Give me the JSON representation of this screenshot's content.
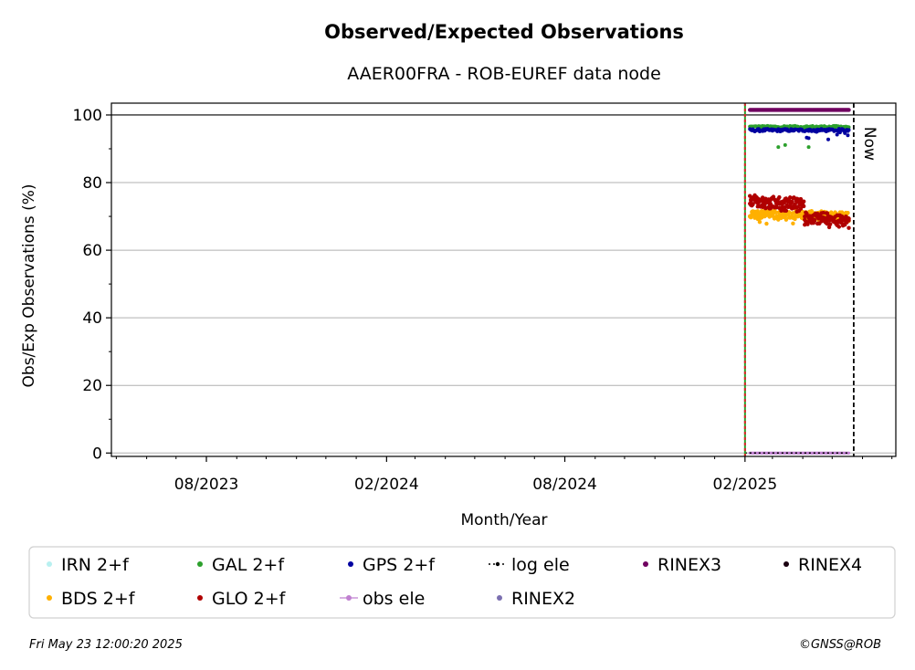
{
  "chart_data": {
    "type": "scatter",
    "title": "Observed/Expected Observations",
    "subtitle": "AAER00FRA - ROB-EUREF data node",
    "xlabel": "Month/Year",
    "ylabel": "Obs/Exp Observations (%)",
    "xlim": [
      "2023-04-26",
      "2025-07-05"
    ],
    "ylim": [
      -1,
      103.5
    ],
    "x_ticks": [
      {
        "date": "2023-08-01",
        "label": "08/2023"
      },
      {
        "date": "2024-02-01",
        "label": "02/2024"
      },
      {
        "date": "2024-08-01",
        "label": "08/2024"
      },
      {
        "date": "2025-02-01",
        "label": "02/2025"
      }
    ],
    "x_minor_ticks": [
      "2023-05-01",
      "2023-06-01",
      "2023-07-01",
      "2023-09-01",
      "2023-10-01",
      "2023-11-01",
      "2023-12-01",
      "2024-01-01",
      "2024-03-01",
      "2024-04-01",
      "2024-05-01",
      "2024-06-01",
      "2024-07-01",
      "2024-09-01",
      "2024-10-01",
      "2024-11-01",
      "2024-12-01",
      "2025-01-01",
      "2025-03-01",
      "2025-04-01",
      "2025-05-01",
      "2025-06-01",
      "2025-07-01"
    ],
    "y_ticks": [
      0,
      20,
      40,
      60,
      80,
      100
    ],
    "y_minor_step": 10,
    "grid": "horizontal",
    "reference_line_y": 100,
    "vline_date": "2025-02-01",
    "vline_colors": [
      "#2ca02c",
      "#d62728"
    ],
    "now_date": "2025-05-23",
    "now_label": "Now",
    "data_start": "2025-02-06",
    "data_end": "2025-05-18",
    "series": [
      {
        "name": "IRN 2+f",
        "color": "#b8f0f0",
        "marker": "dot",
        "values": []
      },
      {
        "name": "BDS 2+f",
        "color": "#ffb000",
        "marker": "dot",
        "values_approx": "~70-72% (66-73)"
      },
      {
        "name": "GAL 2+f",
        "color": "#2ca02c",
        "marker": "dot",
        "values_approx": "~96-97% (89-97)"
      },
      {
        "name": "GLO 2+f",
        "color": "#b00000",
        "marker": "dot",
        "values_approx": "~75% Feb-Mar, ~69-71% Apr-May"
      },
      {
        "name": "GPS 2+f",
        "color": "#0000a0",
        "marker": "dot",
        "values_approx": "~95-96% (92-96)"
      },
      {
        "name": "obs ele",
        "color": "#c080d0",
        "marker": "line-dot",
        "values_approx": "0"
      },
      {
        "name": "log ele",
        "color": "#000000",
        "marker": "dotted-line",
        "values_approx": "0"
      },
      {
        "name": "RINEX2",
        "color": "#7b6fb0",
        "marker": "dot",
        "values": []
      },
      {
        "name": "RINEX3",
        "color": "#700060",
        "marker": "dot",
        "values_approx": "~101.5"
      },
      {
        "name": "RINEX4",
        "color": "#1a0010",
        "marker": "dot",
        "values": []
      }
    ]
  },
  "footer": {
    "timestamp": "Fri May 23 12:00:20 2025",
    "credit": "©GNSS@ROB"
  }
}
